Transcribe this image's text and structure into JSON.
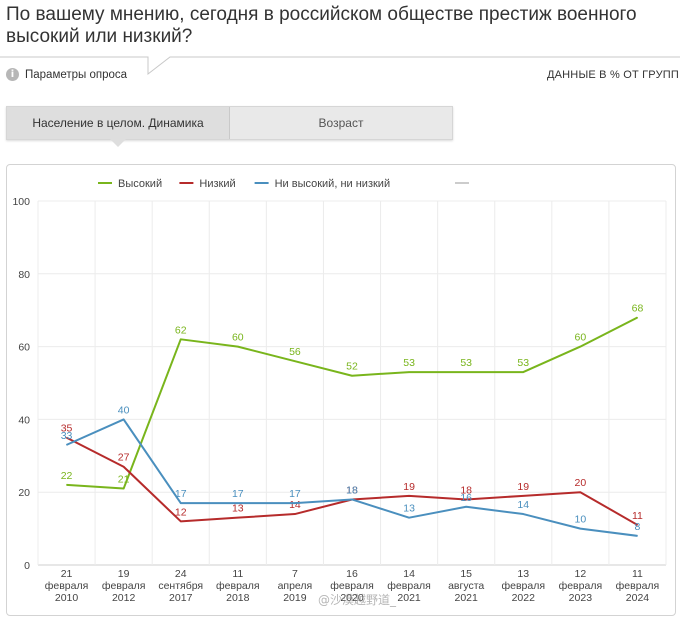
{
  "question": "По вашему мнению, сегодня в российском обществе престиж военного высокий или низкий?",
  "params_label": "Параметры опроса",
  "info_icon": "info-icon",
  "data_note": "ДАННЫЕ В % ОТ ГРУПП",
  "tabs": [
    {
      "label": "Население в целом. Динамика",
      "active": true
    },
    {
      "label": "Возраст",
      "active": false
    }
  ],
  "watermark": "@沙漠越野道_",
  "chart_data": {
    "type": "line",
    "categories": [
      [
        "21",
        "февраля",
        "2010"
      ],
      [
        "19",
        "февраля",
        "2012"
      ],
      [
        "24",
        "сентября",
        "2017"
      ],
      [
        "11",
        "февраля",
        "2018"
      ],
      [
        "7",
        "апреля",
        "2019"
      ],
      [
        "16",
        "февраля",
        "2020"
      ],
      [
        "14",
        "февраля",
        "2021"
      ],
      [
        "15",
        "августа",
        "2021"
      ],
      [
        "13",
        "февраля",
        "2022"
      ],
      [
        "12",
        "февраля",
        "2023"
      ],
      [
        "11",
        "февраля",
        "2024"
      ]
    ],
    "series": [
      {
        "name": "Высокий",
        "color": "#79b51c",
        "values": [
          22,
          21,
          62,
          60,
          56,
          52,
          53,
          53,
          53,
          60,
          68
        ]
      },
      {
        "name": "Низкий",
        "color": "#b62b2b",
        "values": [
          35,
          27,
          12,
          13,
          14,
          18,
          19,
          18,
          19,
          20,
          11
        ]
      },
      {
        "name": "Ни высокий, ни низкий",
        "color": "#4a8fbe",
        "values": [
          33,
          40,
          17,
          17,
          17,
          18,
          13,
          16,
          14,
          10,
          8
        ]
      }
    ],
    "extra_legend_color": "#cccccc",
    "yticks": [
      0,
      20,
      40,
      60,
      80,
      100
    ],
    "ylim": [
      0,
      100
    ],
    "grid": true,
    "legend_position": "top"
  }
}
